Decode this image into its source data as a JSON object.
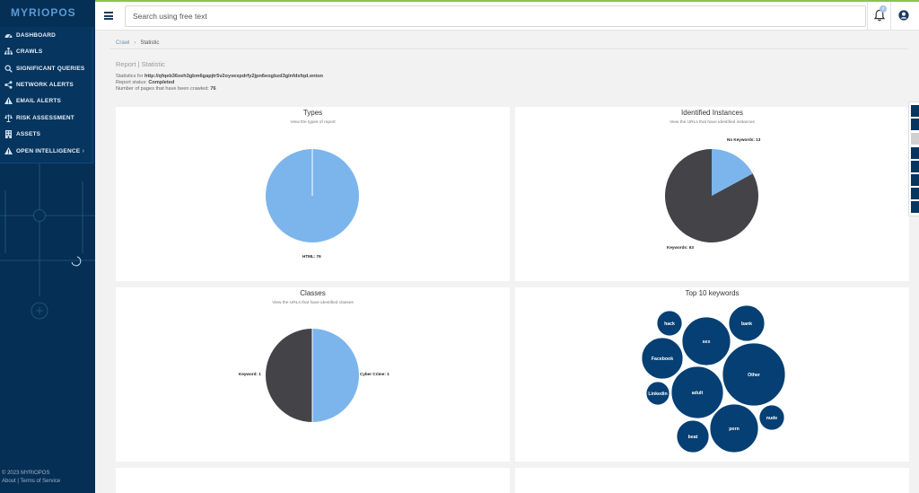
{
  "app": {
    "logo": "MYRIOPOS",
    "copyright": "© 2023 MYRIOPOS",
    "about": "About",
    "terms": "Terms of Service"
  },
  "sidebar": {
    "items": [
      {
        "label": "DASHBOARD",
        "icon": "dashboard-icon"
      },
      {
        "label": "CRAWLS",
        "icon": "sitemap-icon"
      },
      {
        "label": "SIGNIFICANT QUERIES",
        "icon": "search-icon"
      },
      {
        "label": "NETWORK ALERTS",
        "icon": "share-icon"
      },
      {
        "label": "EMAIL ALERTS",
        "icon": "warning-icon"
      },
      {
        "label": "RISK ASSESSMENT",
        "icon": "balance-icon"
      },
      {
        "label": "ASSETS",
        "icon": "building-icon"
      },
      {
        "label": "OPEN INTELLIGENCE",
        "icon": "warning-icon"
      }
    ]
  },
  "header": {
    "search_placeholder": "Search using free text",
    "notification_count": "0"
  },
  "breadcrumb": {
    "crawl": "Crawl",
    "current": "Statistic"
  },
  "report": {
    "title": "Report | Statistic",
    "stats_label": "Statistics for",
    "url": "http://qfqeb36xeh3gbm6gapjtr5v2oyxexpdrfy2jpn6eogbzd3glnfdsfqd.onion",
    "status_label": "Report status:",
    "status": "Completed",
    "pages_label": "Number of pages that have been crawled:",
    "pages": "76"
  },
  "cards": {
    "types": {
      "title": "Types",
      "subtitle": "View the types of report",
      "slice_label": "HTML: 76"
    },
    "instances": {
      "title": "Identified Instances",
      "subtitle": "View the URLs that have identified instances",
      "label_no": "No Keywords: 13",
      "label_yes": "Keywords: 63"
    },
    "classes": {
      "title": "Classes",
      "subtitle": "View the URLs that have identified classes",
      "label_left": "Keyword: 1",
      "label_right": "Cyber Crime: 1"
    },
    "keywords": {
      "title": "Top 10 keywords"
    }
  },
  "chart_data": [
    {
      "type": "pie",
      "title": "Types",
      "categories": [
        "HTML"
      ],
      "values": [
        76
      ]
    },
    {
      "type": "pie",
      "title": "Identified Instances",
      "categories": [
        "No Keywords",
        "Keywords"
      ],
      "values": [
        13,
        63
      ]
    },
    {
      "type": "pie",
      "title": "Classes",
      "categories": [
        "Keyword",
        "Cyber Crime"
      ],
      "values": [
        1,
        1
      ]
    },
    {
      "type": "bubble",
      "title": "Top 10 keywords",
      "categories": [
        "hack",
        "bank",
        "sex",
        "Facebook",
        "Other",
        "Linkedin",
        "adult",
        "nude",
        "porn",
        "beat"
      ]
    }
  ],
  "colors": {
    "sidebar": "#052f55",
    "pie_light": "#7cb5ec",
    "pie_dark": "#434348",
    "bubble": "#063f73"
  }
}
